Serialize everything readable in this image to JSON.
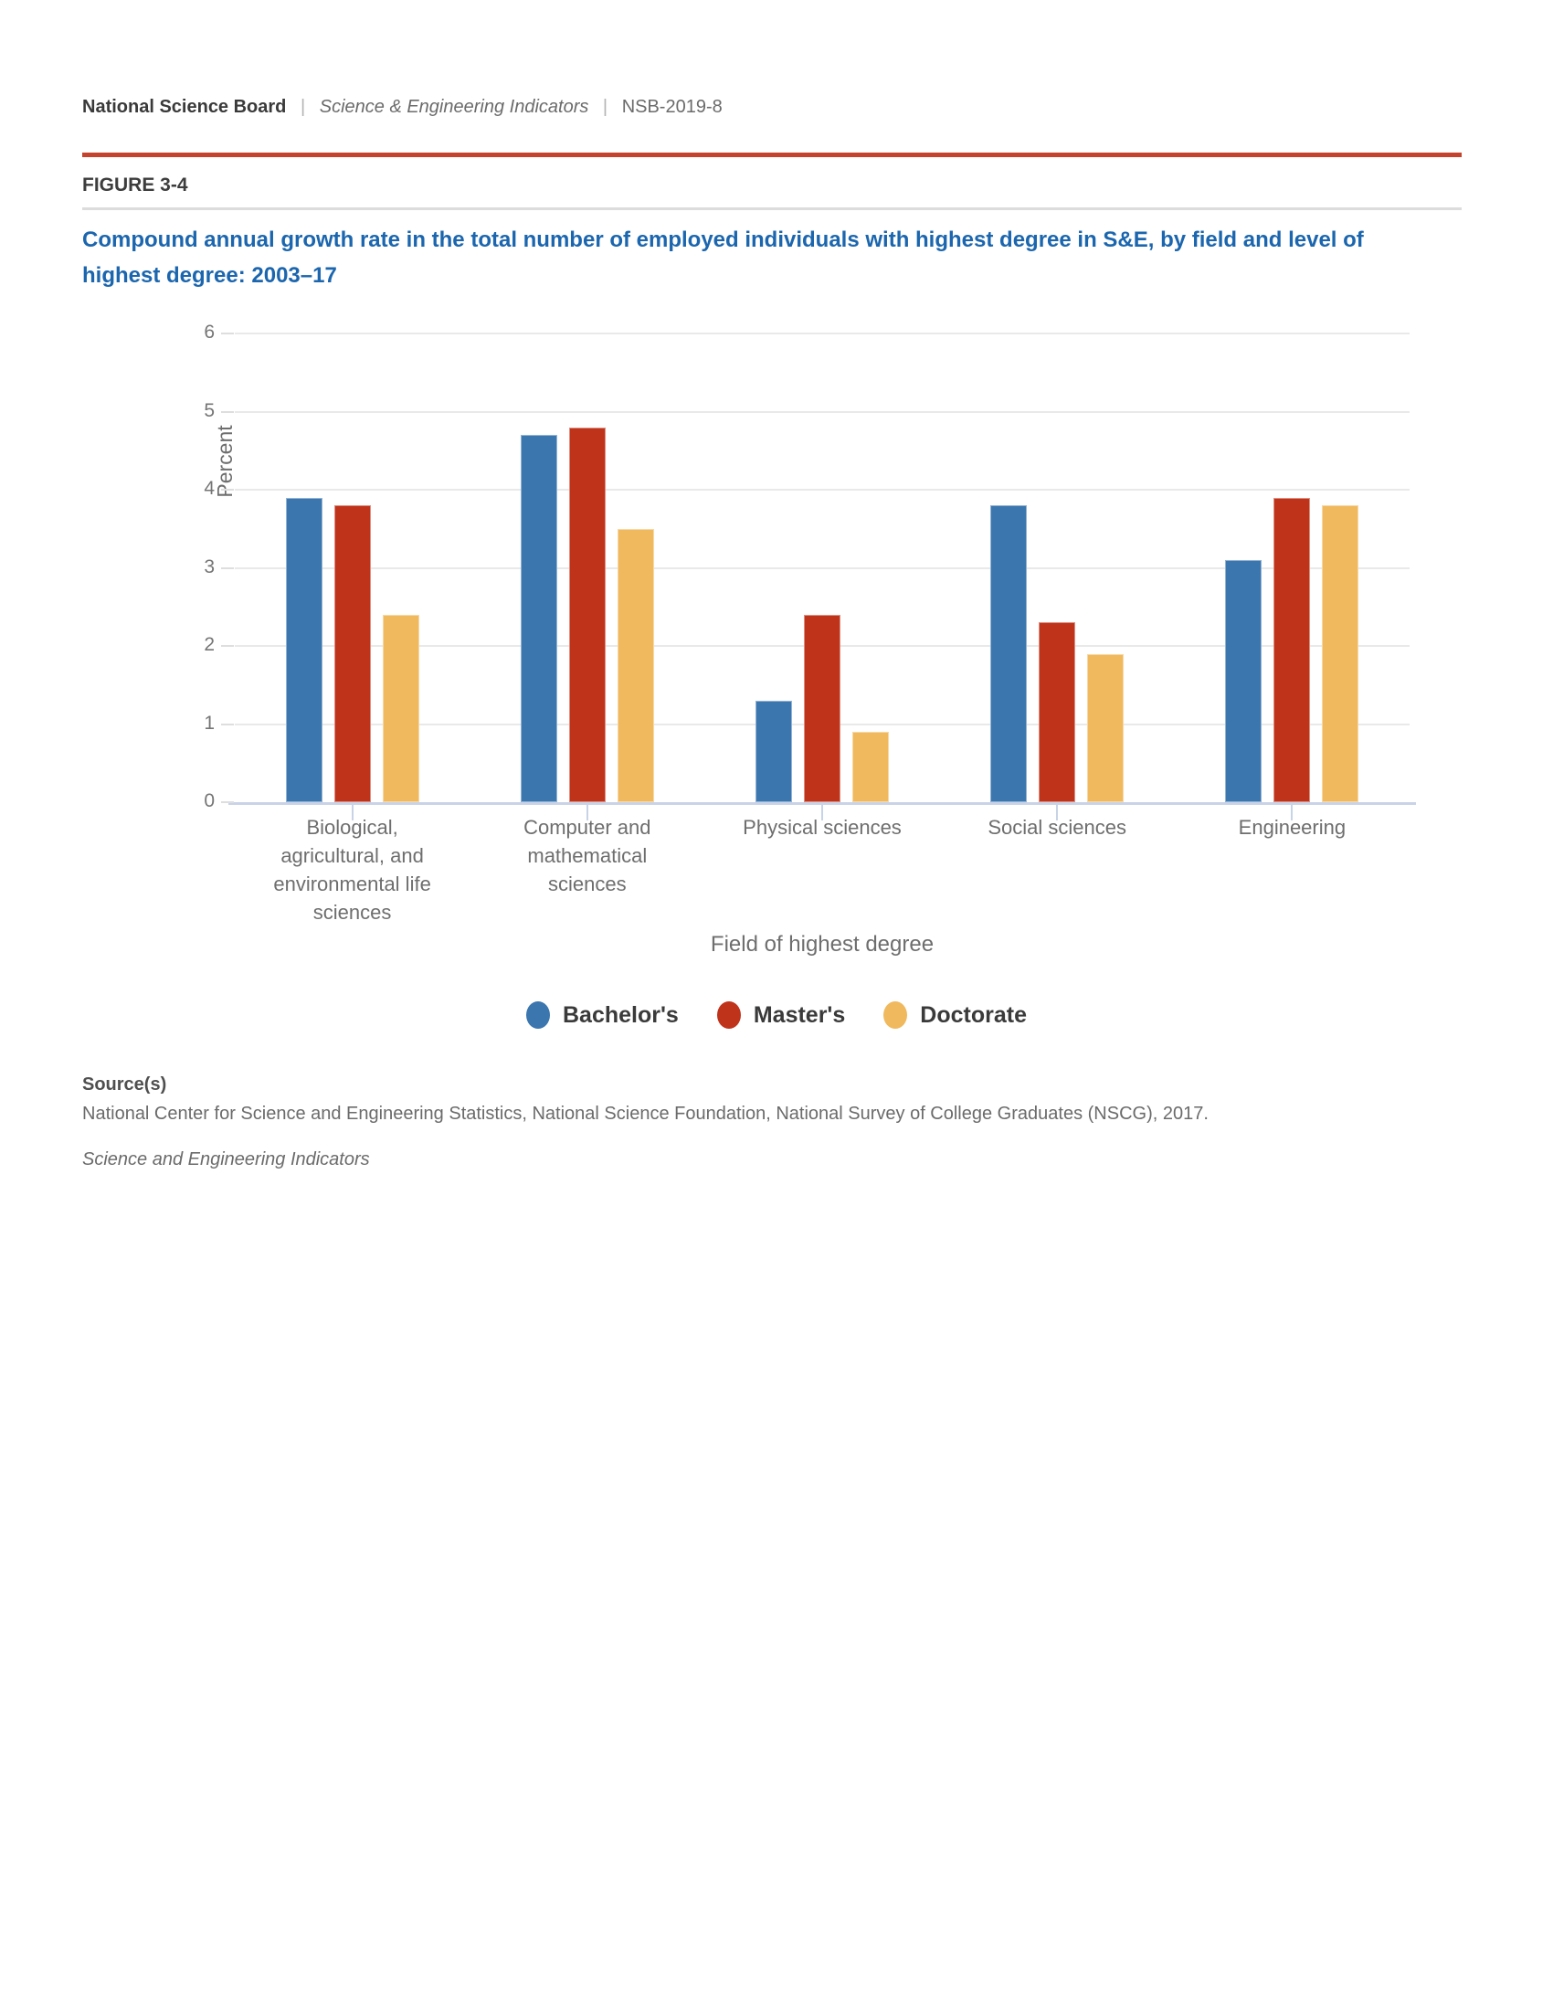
{
  "page": {
    "header": {
      "brand": "National Science Board",
      "separator": "|",
      "publication": "Science & Engineering Indicators",
      "doc_id": "NSB-2019-8"
    },
    "figure_label": "FIGURE 3-4",
    "title_lines": [
      "Compound annual growth rate in the total number of employed individuals with highest degree in S&E, by field and level of",
      "highest degree: 2003–17"
    ],
    "source": {
      "heading": "Source(s)",
      "text": "National Center for Science and Engineering Statistics, National Science Foundation, National Survey of College Graduates (NSCG), 2017.",
      "publication_italic": "Science and Engineering Indicators"
    }
  },
  "colors": {
    "accent_rule": "#c5432d",
    "title_blue": "#1b66ae",
    "bachelors_blue": "#3b76af",
    "masters_red": "#c0331b",
    "doctorate_yellow": "#f0b95e",
    "axis_line": "#c9d3e8",
    "gridline": "#e9e9e9"
  },
  "chart_data": {
    "type": "bar",
    "title": "Compound annual growth rate in the total number of employed individuals with highest degree in S&E, by field and level of highest degree: 2003–17",
    "categories": [
      "Biological, agricultural, and environmental life sciences",
      "Computer and mathematical sciences",
      "Physical sciences",
      "Social sciences",
      "Engineering"
    ],
    "series": [
      {
        "name": "Bachelor's",
        "color": "#3b76af",
        "values": [
          3.9,
          4.7,
          1.3,
          3.8,
          3.1
        ]
      },
      {
        "name": "Master's",
        "color": "#c0331b",
        "values": [
          3.8,
          4.8,
          2.4,
          2.3,
          3.9
        ]
      },
      {
        "name": "Doctorate",
        "color": "#f0b95e",
        "values": [
          2.4,
          3.5,
          0.9,
          1.9,
          3.8
        ]
      }
    ],
    "xlabel": "Field of highest degree",
    "ylabel": "Percent",
    "ylim": [
      0,
      6
    ],
    "yticks": [
      0,
      1,
      2,
      3,
      4,
      5,
      6
    ],
    "grid": true,
    "legend_position": "bottom"
  }
}
